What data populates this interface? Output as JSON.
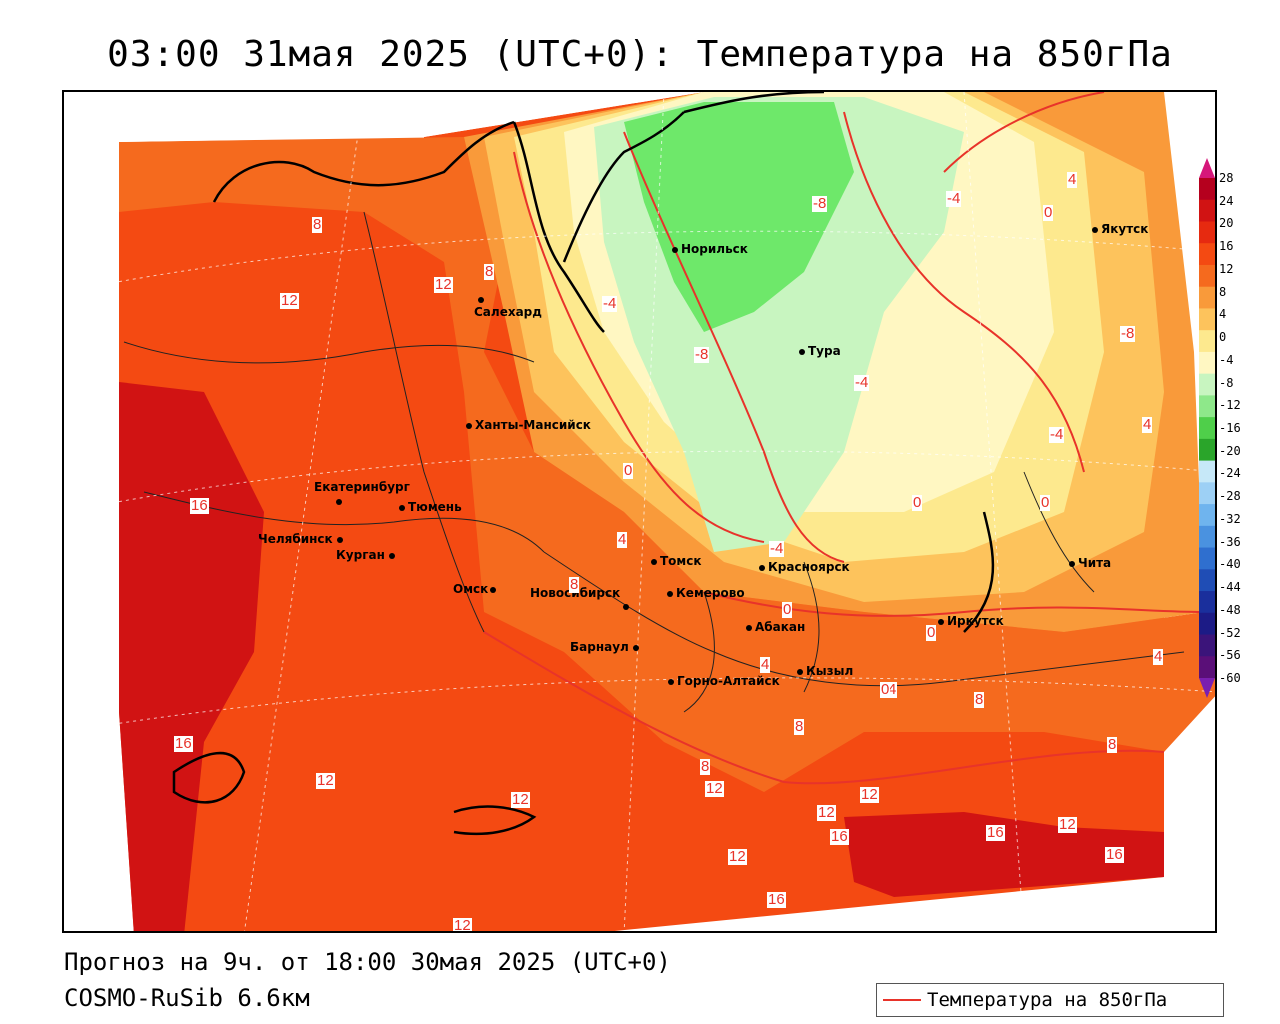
{
  "title": "03:00 31мая 2025 (UTC+0): Температура на 850гПа",
  "forecast_line": "Прогноз на 9ч. от 18:00 30мая 2025 (UTC+0)",
  "model": "COSMO-RuSib 6.6км",
  "legend": {
    "label": "Температура на 850гПа",
    "line_color": "#e8332a"
  },
  "colorbar": {
    "labels": [
      "28",
      "24",
      "20",
      "16",
      "12",
      "8",
      "4",
      "0",
      "-4",
      "-8",
      "-12",
      "-16",
      "-20",
      "-24",
      "-28",
      "-32",
      "-36",
      "-40",
      "-44",
      "-48",
      "-52",
      "-56",
      "-60"
    ],
    "colors": [
      "#b5001e",
      "#d11313",
      "#e62a10",
      "#f44a12",
      "#f56a1e",
      "#f99a3a",
      "#fdc35c",
      "#fde98e",
      "#fff7c2",
      "#c8f5c0",
      "#8ee88a",
      "#4fcf4a",
      "#2aa52a",
      "#c6e8f8",
      "#9dd0f5",
      "#6fb4ee",
      "#4a92e0",
      "#2f6fcf",
      "#1f4db5",
      "#1a2f9c",
      "#1c1b86",
      "#3b147a",
      "#5a0f78"
    ]
  },
  "cities": [
    {
      "name": "Норильск"
    },
    {
      "name": "Якутск"
    },
    {
      "name": "Салехард"
    },
    {
      "name": "Тура"
    },
    {
      "name": "Ханты-Мансийск"
    },
    {
      "name": "Екатеринбург"
    },
    {
      "name": "Тюмень"
    },
    {
      "name": "Челябинск"
    },
    {
      "name": "Курган"
    },
    {
      "name": "Омск"
    },
    {
      "name": "Новосибирск"
    },
    {
      "name": "Томск"
    },
    {
      "name": "Кемерово"
    },
    {
      "name": "Красноярск"
    },
    {
      "name": "Абакан"
    },
    {
      "name": "Барнаул"
    },
    {
      "name": "Горно-Алтайск"
    },
    {
      "name": "Кызыл"
    },
    {
      "name": "Иркутск"
    },
    {
      "name": "Чита"
    }
  ],
  "isotherm_labels": [
    "8",
    "12",
    "12",
    "8",
    "-4",
    "-8",
    "-8",
    "-4",
    "-4",
    "0",
    "4",
    "0",
    "-8",
    "-4",
    "0",
    "-4",
    "0",
    "4",
    "16",
    "0",
    "4",
    "8",
    "4",
    "-4",
    "0",
    "4",
    "0",
    "8",
    "4",
    "4",
    "8",
    "8",
    "16",
    "12",
    "12",
    "8",
    "12",
    "16",
    "12",
    "12",
    "16",
    "12",
    "16",
    "12",
    "16",
    "12"
  ]
}
